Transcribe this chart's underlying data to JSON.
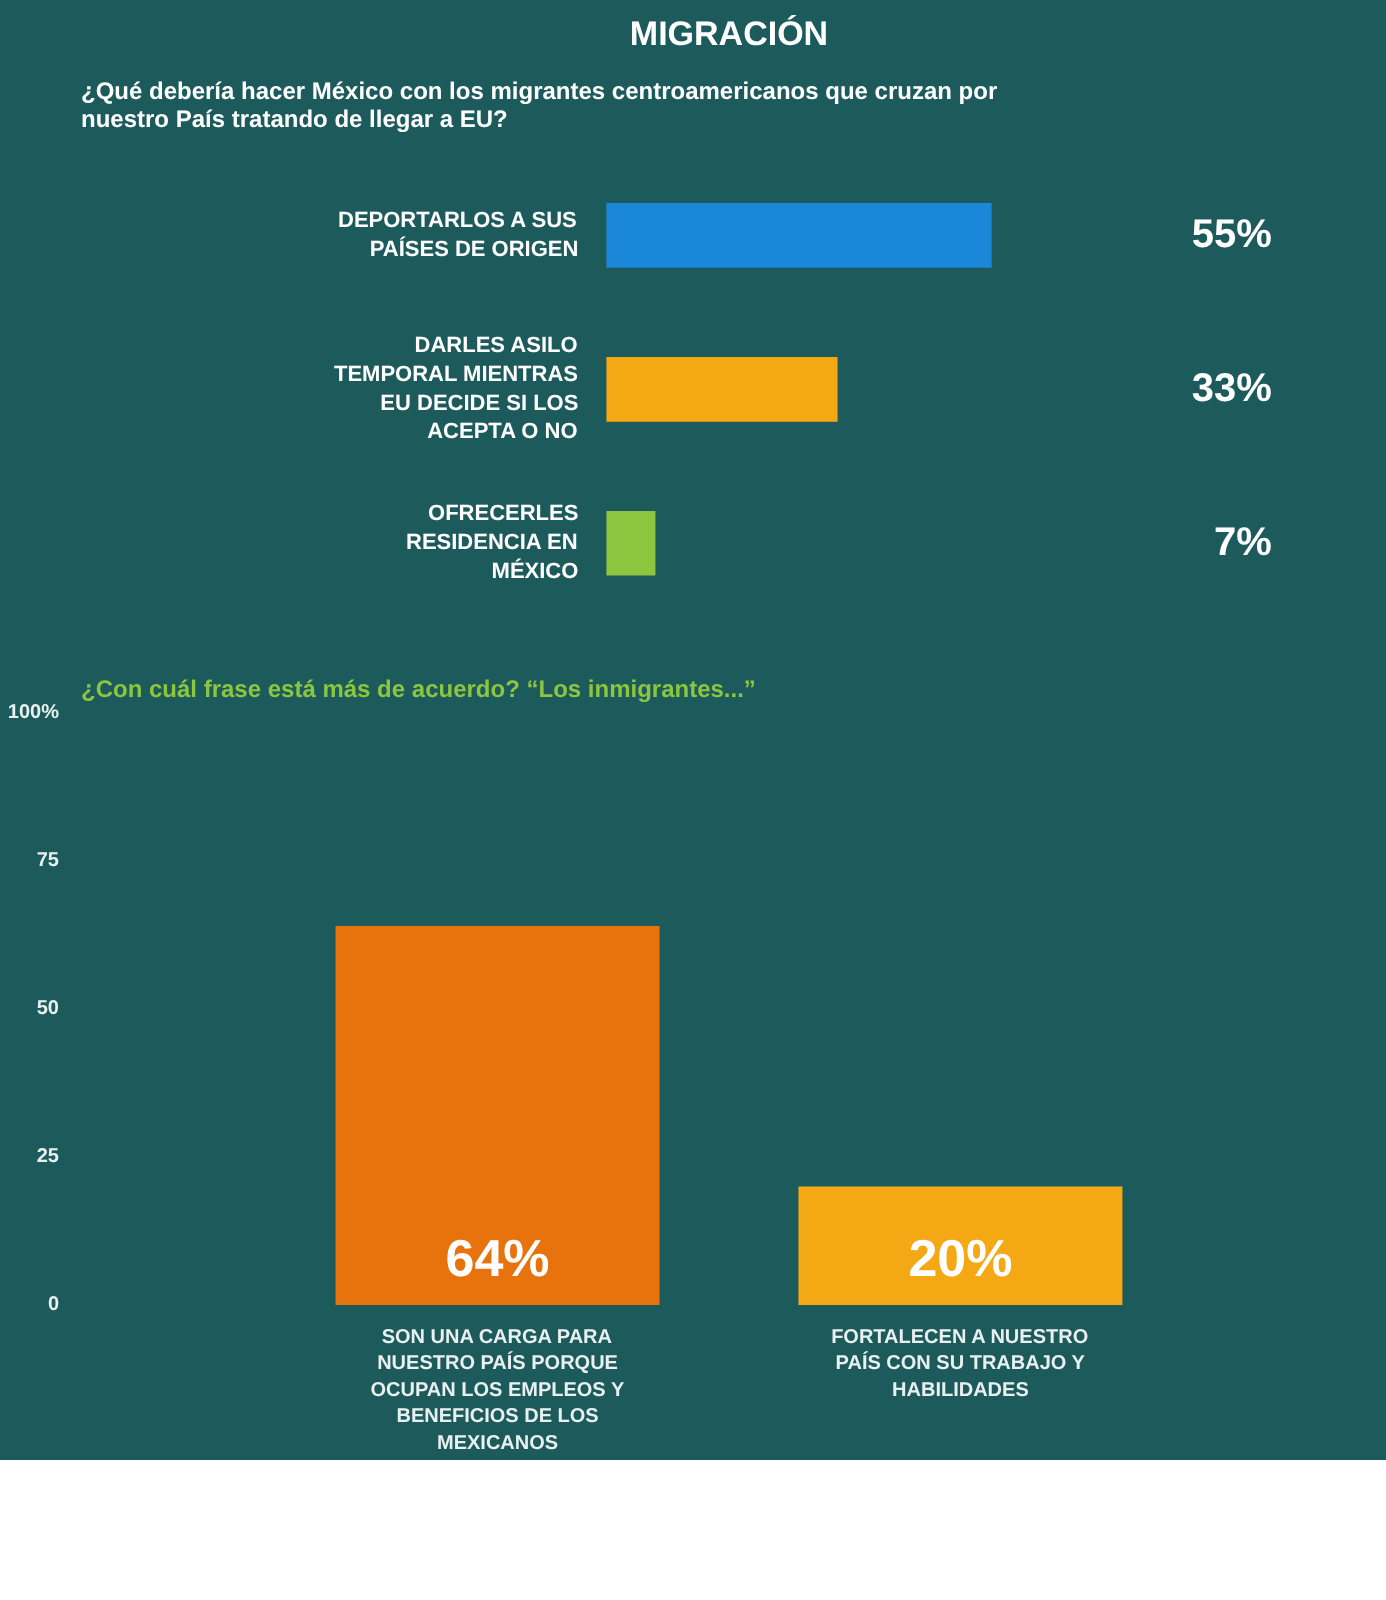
{
  "chart_data": [
    {
      "type": "bar",
      "orientation": "horizontal",
      "title": "MIGRACIÓN",
      "subtitle": "¿Qué debería hacer México con los migrantes centroamericanos que cruzan por nuestro País tratando de llegar a EU?",
      "categories": [
        "DEPORTARLOS A SUS PAÍSES DE ORIGEN",
        "DARLES ASILO TEMPORAL MIENTRAS EU DECIDE SI LOS ACEPTA O NO",
        "OFRECERLES RESIDENCIA EN MÉXICO"
      ],
      "values": [
        55,
        33,
        7
      ],
      "colors": [
        "#1b87d8",
        "#f4a813",
        "#8cc63f"
      ],
      "data_labels": true,
      "value_labels": [
        "55%",
        "33%",
        "7%"
      ],
      "tick_labels": false,
      "grid": false
    },
    {
      "type": "bar",
      "title": "¿Con cuál frase está más de acuerdo? “Los inmigrantes...”",
      "categories": [
        "SON UNA CARGA PARA NUESTRO PAÍS PORQUE OCUPAN LOS EMPLEOS Y BENEFICIOS DE LOS MEXICANOS",
        "FORTALECEN A NUESTRO PAÍS CON SU TRABAJO Y HABILIDADES"
      ],
      "values": [
        64,
        20
      ],
      "colors": [
        "#e8720c",
        "#f4a813"
      ],
      "ylim": [
        0,
        100
      ],
      "yticks": [
        0,
        25,
        50,
        75,
        {
          "value": 100,
          "label": "100%"
        }
      ],
      "data_labels": true,
      "value_labels": [
        "64%",
        "20%"
      ],
      "grid": false
    }
  ]
}
